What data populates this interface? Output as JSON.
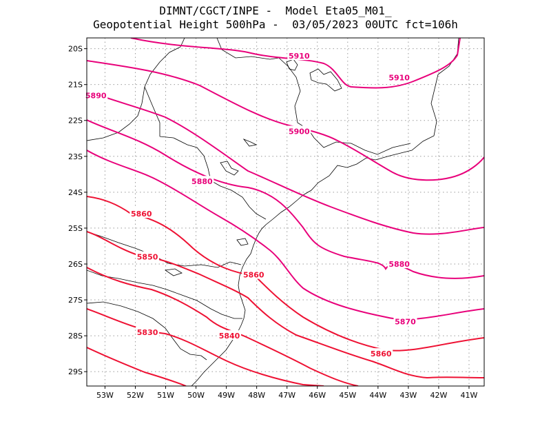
{
  "title": {
    "line1": "DIMNT/CGCT/INPE -  Model Eta05_M01_",
    "line2": "Geopotential Height 500hPa -  03/05/2023 00UTC fct=106h"
  },
  "axes": {
    "lat_ticks": [
      "20S",
      "21S",
      "22S",
      "23S",
      "24S",
      "25S",
      "26S",
      "27S",
      "28S",
      "29S"
    ],
    "lon_ticks": [
      "53W",
      "52W",
      "51W",
      "50W",
      "49W",
      "48W",
      "47W",
      "46W",
      "45W",
      "44W",
      "43W",
      "42W",
      "41W"
    ]
  },
  "colors": {
    "high": "#e8007a",
    "low": "#ee1133",
    "grid": "#999999",
    "coast": "#000000"
  },
  "chart_data": {
    "type": "contour",
    "variable": "Geopotential Height 500hPa",
    "units": "m",
    "lon_range": [
      -53.6,
      -40.5
    ],
    "lat_range": [
      -29.4,
      -19.7
    ],
    "contour_interval": 10,
    "contour_labels": [
      {
        "value": "5910",
        "lon": -46.6,
        "lat": -20.2
      },
      {
        "value": "5910",
        "lon": -43.3,
        "lat": -20.8
      },
      {
        "value": "5890",
        "lon": -53.3,
        "lat": -21.3
      },
      {
        "value": "5900",
        "lon": -46.6,
        "lat": -22.3
      },
      {
        "value": "5880",
        "lon": -49.8,
        "lat": -23.7
      },
      {
        "value": "5880",
        "lon": -43.3,
        "lat": -26.0
      },
      {
        "value": "5860",
        "lon": -51.8,
        "lat": -24.6
      },
      {
        "value": "5860",
        "lon": -48.1,
        "lat": -26.3
      },
      {
        "value": "5860",
        "lon": -43.9,
        "lat": -28.5
      },
      {
        "value": "5850",
        "lon": -51.6,
        "lat": -25.8
      },
      {
        "value": "5870",
        "lon": -43.1,
        "lat": -27.6
      },
      {
        "value": "5840",
        "lon": -48.9,
        "lat": -28.0
      },
      {
        "value": "5830",
        "lon": -51.6,
        "lat": -27.9
      }
    ]
  }
}
